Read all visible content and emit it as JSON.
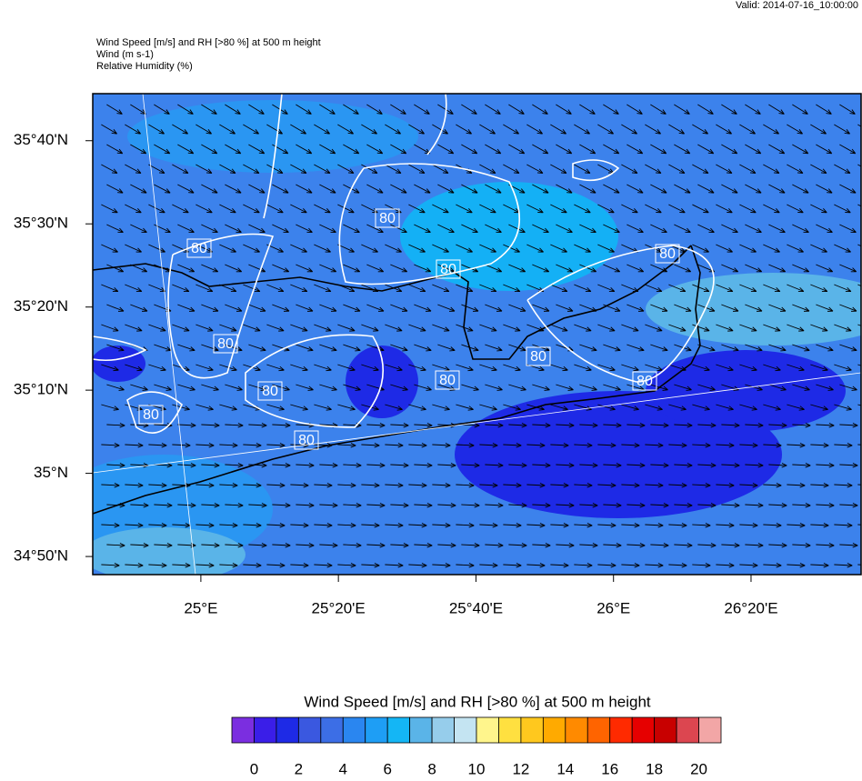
{
  "valid": "Valid: 2014-07-16_10:00:00",
  "header": [
    "Wind Speed [m/s] and RH [>80 %] at 500 m height",
    "Wind   (m s-1)",
    "Relative Humidity   (%)"
  ],
  "contour_label": "80",
  "map": {
    "xlim": [
      24.738,
      26.6
    ],
    "ylim": [
      34.797,
      35.761
    ],
    "xticks": [
      {
        "value": 25,
        "label": "25°E"
      },
      {
        "value": 25.3333,
        "label": "25°20'E"
      },
      {
        "value": 25.6667,
        "label": "25°40'E"
      },
      {
        "value": 26,
        "label": "26°E"
      },
      {
        "value": 26.3333,
        "label": "26°20'E"
      }
    ],
    "yticks": [
      {
        "value": 35.6667,
        "label": "35°40'N"
      },
      {
        "value": 35.5,
        "label": "35°30'N"
      },
      {
        "value": 35.3333,
        "label": "35°20'N"
      },
      {
        "value": 35.1667,
        "label": "35°10'N"
      },
      {
        "value": 35,
        "label": "35°N"
      },
      {
        "value": 34.8333,
        "label": "34°50'N"
      }
    ]
  },
  "colorbar": {
    "title": "Wind Speed [m/s] and RH [>80 %] at 500 m height",
    "range": [
      -1,
      21
    ],
    "colors": [
      "#7b2ee0",
      "#3a1ee8",
      "#1e2ae6",
      "#3a58e0",
      "#3c6ee6",
      "#2a86f0",
      "#1e9ef5",
      "#14b6f5",
      "#5ab4e8",
      "#96cdeb",
      "#c4e4f2",
      "#fff58c",
      "#ffe040",
      "#ffc81e",
      "#ffaa00",
      "#ff8a00",
      "#ff6400",
      "#ff2a00",
      "#e60000",
      "#c80000",
      "#dc4650",
      "#f2a6a6"
    ],
    "ticks": [
      0,
      2,
      4,
      6,
      8,
      10,
      12,
      14,
      16,
      18,
      20
    ]
  }
}
